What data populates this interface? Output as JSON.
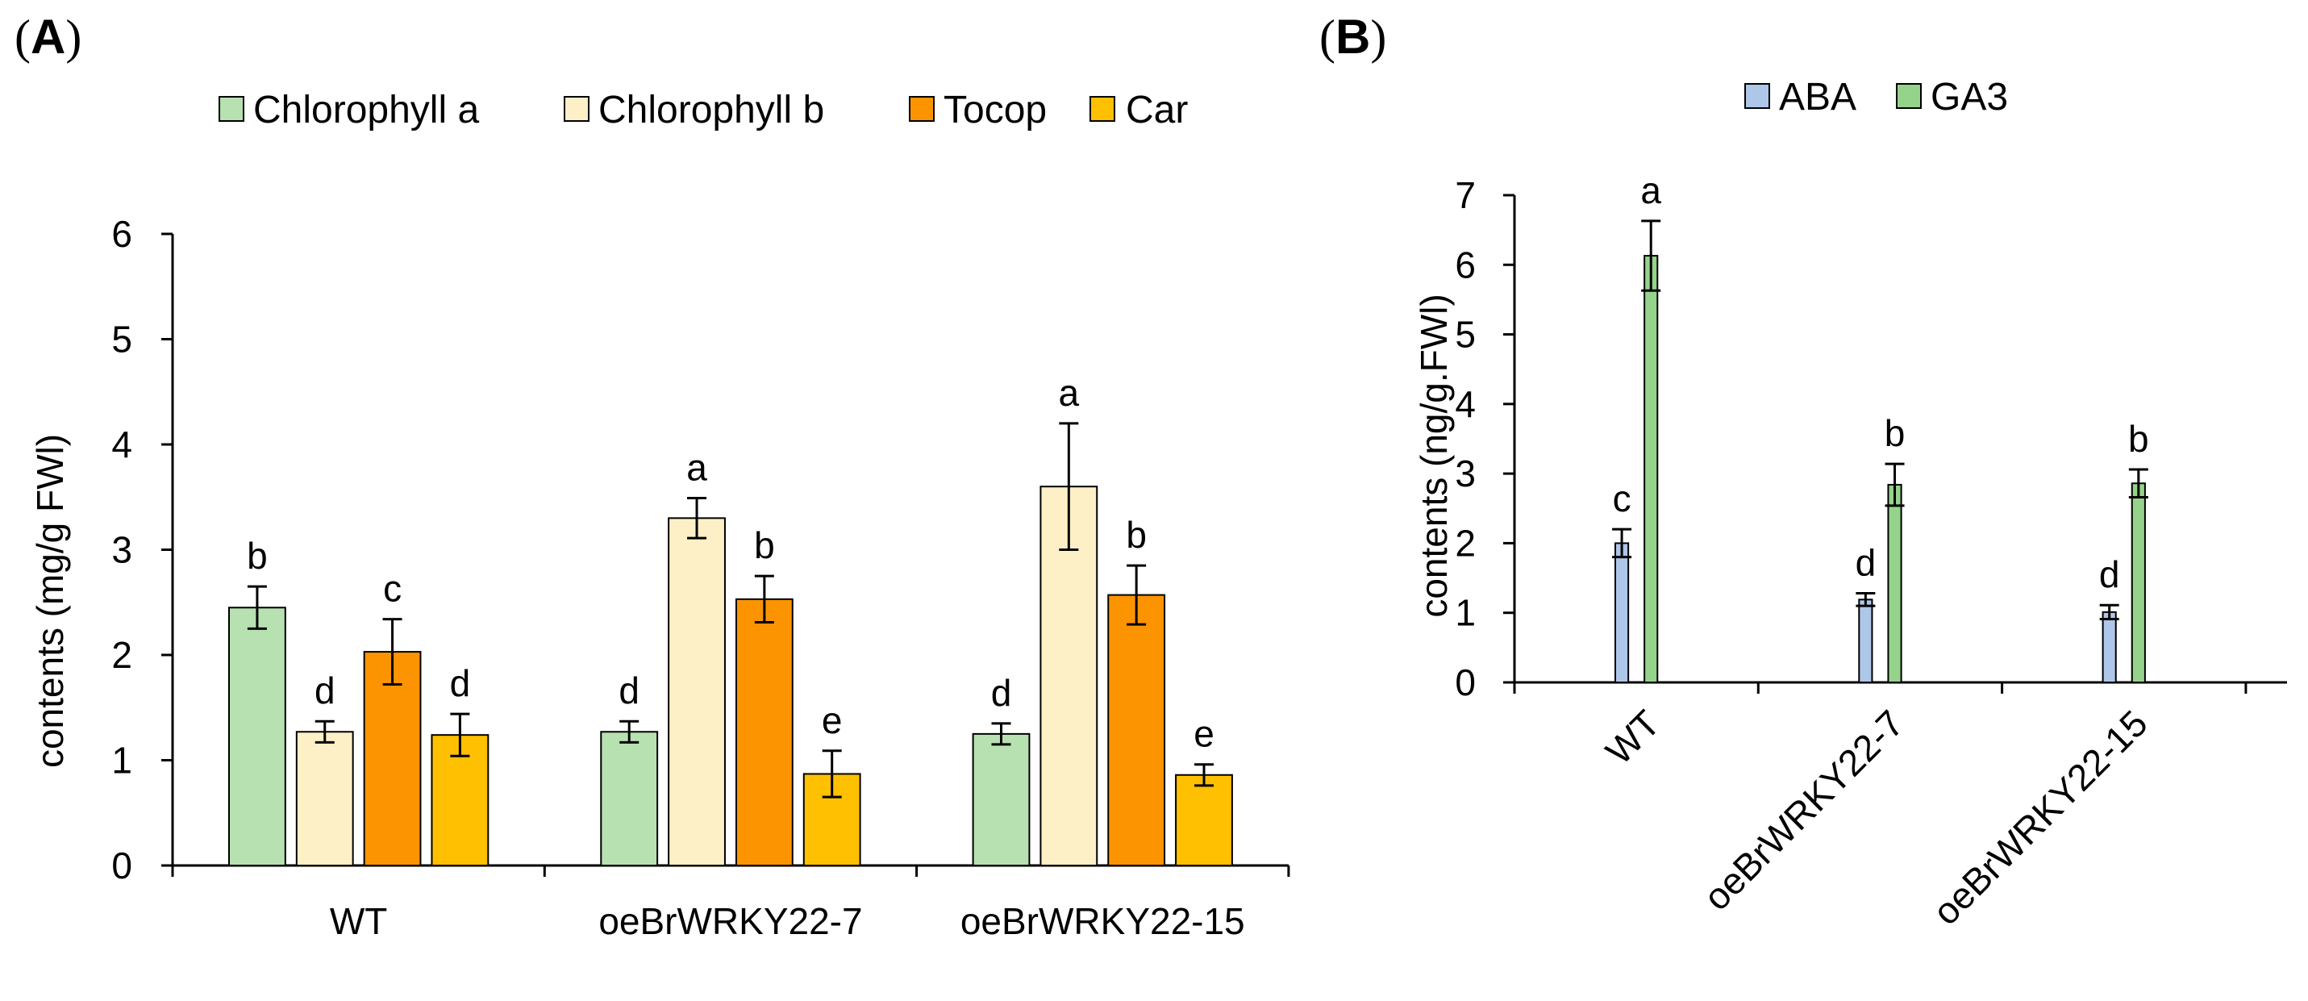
{
  "panels": {
    "A": {
      "open": "(",
      "letter": "A",
      "close": ")"
    },
    "B": {
      "open": "(",
      "letter": "B",
      "close": ")"
    }
  },
  "chart_data": [
    {
      "id": "A",
      "type": "bar",
      "ylabel": "contents (mg/g FWl)",
      "ylim": [
        0,
        6
      ],
      "yticks": [
        "0",
        "1",
        "2",
        "3",
        "4",
        "5",
        "6"
      ],
      "categories": [
        "WT",
        "oeBrWRKY22-7",
        "oeBrWRKY22-15"
      ],
      "legend_position": "top",
      "series": [
        {
          "name": "Chlorophyll a",
          "color": "#b7e1b0",
          "values": [
            2.45,
            1.27,
            1.25
          ],
          "errors": [
            0.2,
            0.1,
            0.1
          ],
          "letters": [
            "b",
            "d",
            "d"
          ]
        },
        {
          "name": "Chlorophyll b",
          "color": "#fdefc6",
          "values": [
            1.27,
            3.3,
            3.6
          ],
          "errors": [
            0.1,
            0.19,
            0.6
          ],
          "letters": [
            "d",
            "a",
            "a"
          ]
        },
        {
          "name": "Tocop",
          "color": "#fb9400",
          "values": [
            2.03,
            2.53,
            2.57
          ],
          "errors": [
            0.31,
            0.22,
            0.28
          ],
          "letters": [
            "c",
            "b",
            "b"
          ]
        },
        {
          "name": "Car",
          "color": "#fec000",
          "values": [
            1.24,
            0.87,
            0.86
          ],
          "errors": [
            0.2,
            0.22,
            0.1
          ],
          "letters": [
            "d",
            "e",
            "e"
          ]
        }
      ]
    },
    {
      "id": "B",
      "type": "bar",
      "ylabel": "contents (ng/g.FWl)",
      "ylim": [
        0,
        7
      ],
      "yticks": [
        "0",
        "1",
        "2",
        "3",
        "4",
        "5",
        "6",
        "7"
      ],
      "categories": [
        "WT",
        "oeBrWRKY22-7",
        "oeBrWRKY22-15"
      ],
      "legend_position": "top",
      "series": [
        {
          "name": "ABA",
          "color": "#aec6e8",
          "values": [
            2.0,
            1.19,
            1.01
          ],
          "errors": [
            0.2,
            0.09,
            0.1
          ],
          "letters": [
            "c",
            "d",
            "d"
          ]
        },
        {
          "name": "GA3",
          "color": "#95d38b",
          "values": [
            6.13,
            2.84,
            2.86
          ],
          "errors": [
            0.5,
            0.3,
            0.2
          ],
          "letters": [
            "a",
            "b",
            "b"
          ]
        }
      ]
    }
  ]
}
